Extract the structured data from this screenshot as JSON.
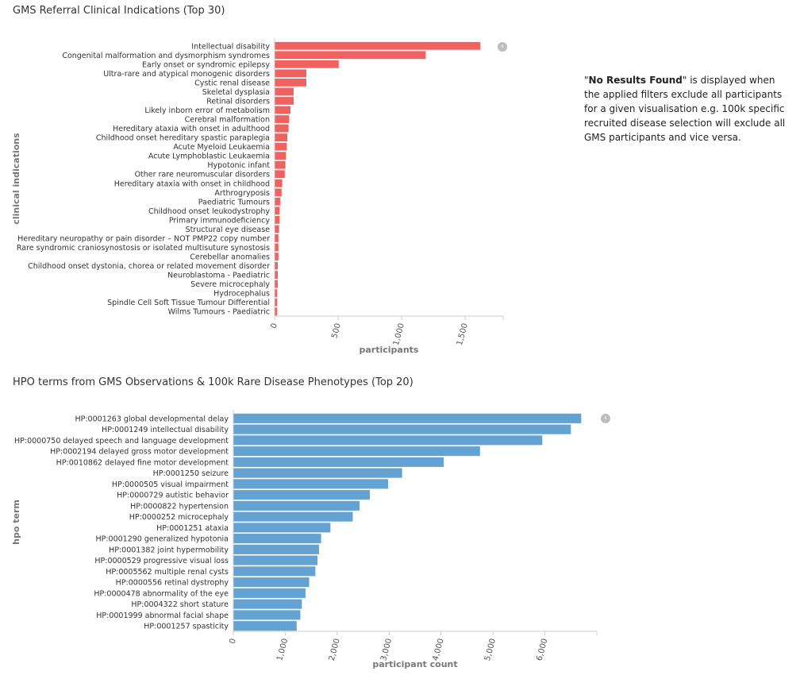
{
  "note": {
    "quote_open": "\"",
    "bold": "No Results Found",
    "rest": "\" is displayed when the applied filters exclude all participants for a given visualisation e.g. 100k specific recruited disease selection will exclude all GMS participants and vice versa."
  },
  "collapse_icon": "chevron-left-icon",
  "collapse_glyph": "‹",
  "chart_data": [
    {
      "type": "bar",
      "orientation": "horizontal",
      "title": "GMS Referral Clinical Indications (Top 30)",
      "xlabel": "participants",
      "ylabel": "clinical indications",
      "color": "#f0625f",
      "xlim": [
        0,
        1800
      ],
      "xticks": [
        0,
        500,
        1000,
        1500
      ],
      "xtick_labels": [
        "0",
        "500",
        "1,000",
        "1,500"
      ],
      "grid": false,
      "categories": [
        "Intellectual disability",
        "Congenital malformation and dysmorphism syndromes",
        "Early onset or syndromic epilepsy",
        "Ultra-rare and atypical monogenic disorders",
        "Cystic renal disease",
        "Skeletal dysplasia",
        "Retinal disorders",
        "Likely inborn error of metabolism",
        "Cerebral malformation",
        "Hereditary ataxia with onset in adulthood",
        "Childhood onset hereditary spastic paraplegia",
        "Acute Myeloid Leukaemia",
        "Acute Lymphoblastic Leukaemia",
        "Hypotonic infant",
        "Other rare neuromuscular disorders",
        "Hereditary ataxia with onset in childhood",
        "Arthrogryposis",
        "Paediatric Tumours",
        "Childhood onset leukodystrophy",
        "Primary immunodeficiency",
        "Structural eye disease",
        "Hereditary neuropathy or pain disorder – NOT PMP22 copy number",
        "Rare syndromic craniosynostosis or isolated multisuture synostosis",
        "Cerebellar anomalies",
        "Childhood onset dystonia, chorea or related movement disorder",
        "Neuroblastoma - Paediatric",
        "Severe microcephaly",
        "Hydrocephalus",
        "Spindle Cell Soft Tissue Tumour Differential",
        "Wilms Tumours - Paediatric"
      ],
      "values": [
        1620,
        1190,
        505,
        250,
        250,
        150,
        150,
        125,
        115,
        110,
        100,
        95,
        90,
        85,
        80,
        60,
        55,
        45,
        40,
        40,
        35,
        30,
        30,
        30,
        25,
        25,
        25,
        20,
        20,
        20
      ]
    },
    {
      "type": "bar",
      "orientation": "horizontal",
      "title": "HPO terms from GMS Observations & 100k Rare Disease Phenotypes (Top 20)",
      "xlabel": "participant count",
      "ylabel": "hpo term",
      "color": "#64a2d2",
      "xlim": [
        0,
        7000
      ],
      "xticks": [
        0,
        1000,
        2000,
        3000,
        4000,
        5000,
        6000
      ],
      "xtick_labels": [
        "0",
        "1,000",
        "2,000",
        "3,000",
        "4,000",
        "5,000",
        "6,000"
      ],
      "grid": false,
      "categories": [
        "HP:0001263 global developmental delay",
        "HP:0001249 intellectual disability",
        "HP:0000750 delayed speech and language development",
        "HP:0002194 delayed gross motor development",
        "HP:0010862 delayed fine motor development",
        "HP:0001250 seizure",
        "HP:0000505 visual impairment",
        "HP:0000729 autistic behavior",
        "HP:0000822 hypertension",
        "HP:0000252 microcephaly",
        "HP:0001251 ataxia",
        "HP:0001290 generalized hypotonia",
        "HP:0001382 joint hypermobility",
        "HP:0000529 progressive visual loss",
        "HP:0005562 multiple renal cysts",
        "HP:0000556 retinal dystrophy",
        "HP:0000478 abnormality of the eye",
        "HP:0004322 short stature",
        "HP:0001999 abnormal facial shape",
        "HP:0001257 spasticity"
      ],
      "values": [
        6700,
        6500,
        5950,
        4750,
        4050,
        3250,
        2980,
        2630,
        2430,
        2300,
        1870,
        1690,
        1650,
        1620,
        1580,
        1460,
        1390,
        1320,
        1290,
        1220
      ]
    }
  ]
}
